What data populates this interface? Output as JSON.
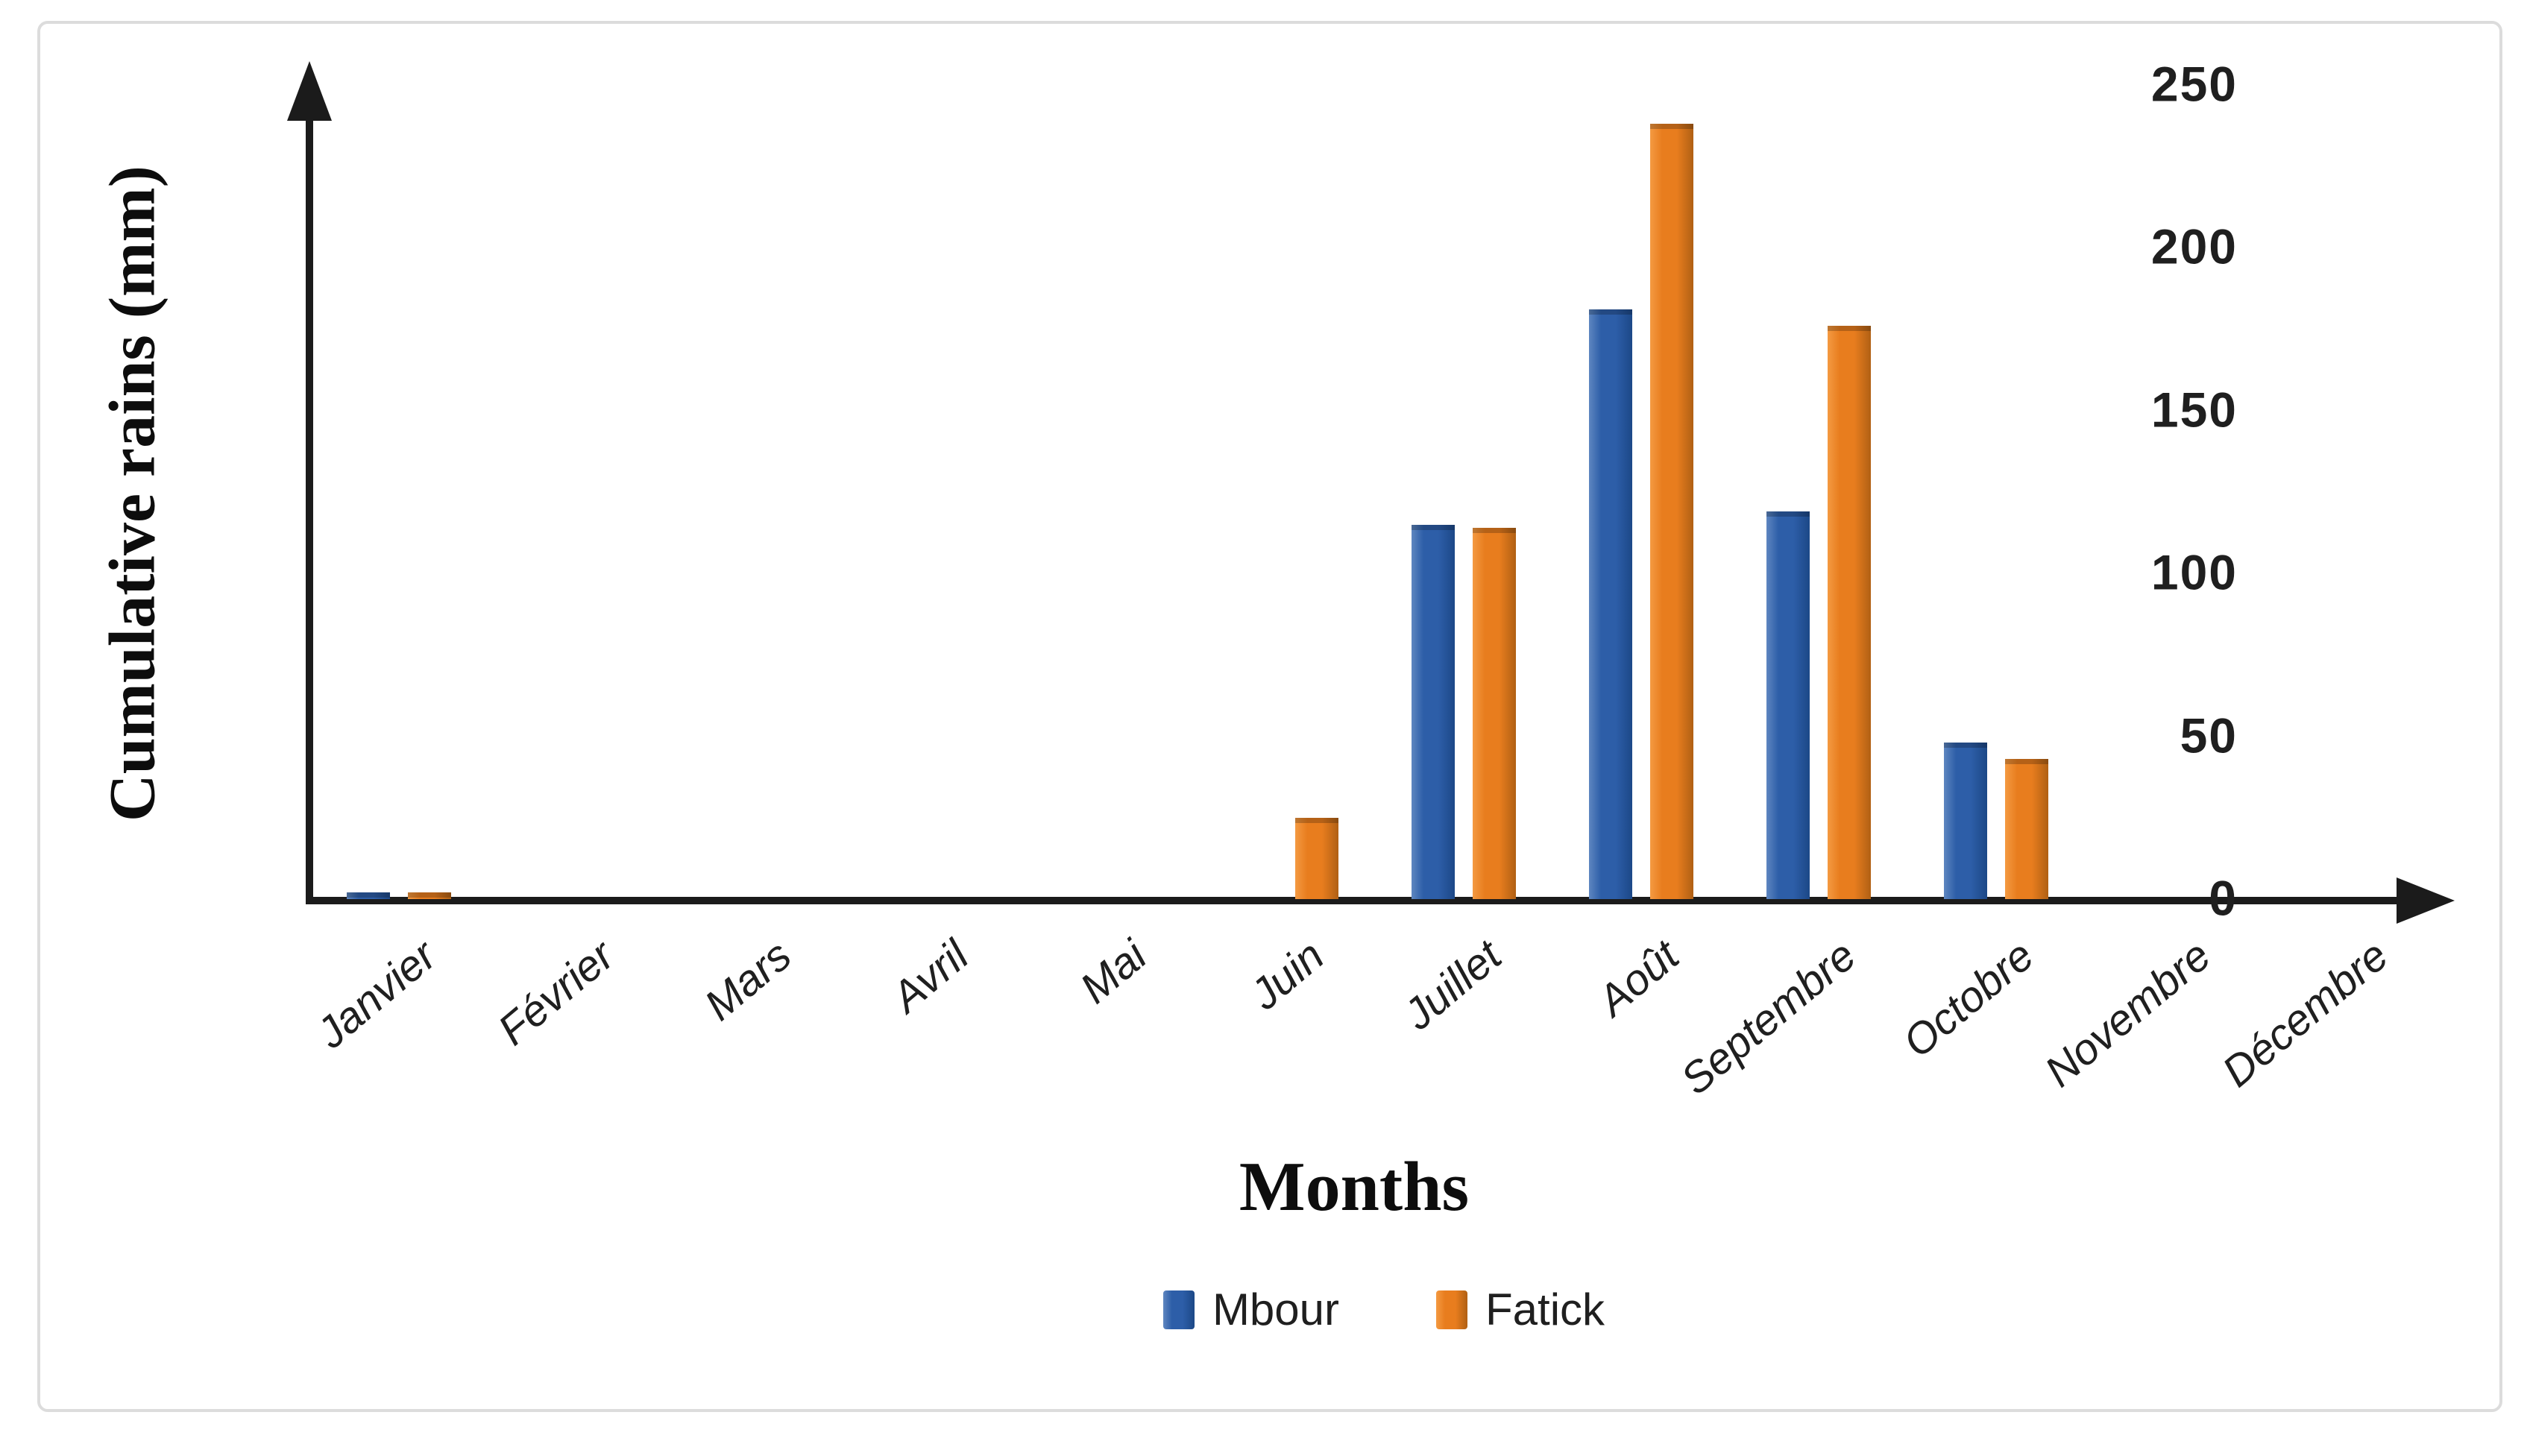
{
  "chart_data": {
    "type": "bar",
    "title": "",
    "xlabel": "Months",
    "ylabel": "Cumulative rains (mm)",
    "categories": [
      "Janvier",
      "Février",
      "Mars",
      "Avril",
      "Mai",
      "Juin",
      "Juillet",
      "Août",
      "Septembre",
      "Octobre",
      "Novembre",
      "Décembre"
    ],
    "series": [
      {
        "name": "Mbour",
        "colors": {
          "light": "#5e86c0",
          "main": "#2d5ea8",
          "dark": "#1c4887"
        },
        "values": [
          2,
          0,
          0,
          0,
          0,
          0,
          115,
          181,
          119,
          48,
          0,
          0
        ]
      },
      {
        "name": "Fatick",
        "colors": {
          "light": "#f49a42",
          "main": "#e87d1e",
          "dark": "#b06014"
        },
        "values": [
          2,
          0,
          0,
          0,
          0,
          25,
          114,
          238,
          176,
          43,
          0,
          0
        ]
      }
    ],
    "ylim": [
      0,
      250
    ],
    "yticks": [
      0,
      50,
      100,
      150,
      200,
      250
    ],
    "grid": false,
    "legend_position": "bottom",
    "axis_color": "#1b1b1b"
  }
}
